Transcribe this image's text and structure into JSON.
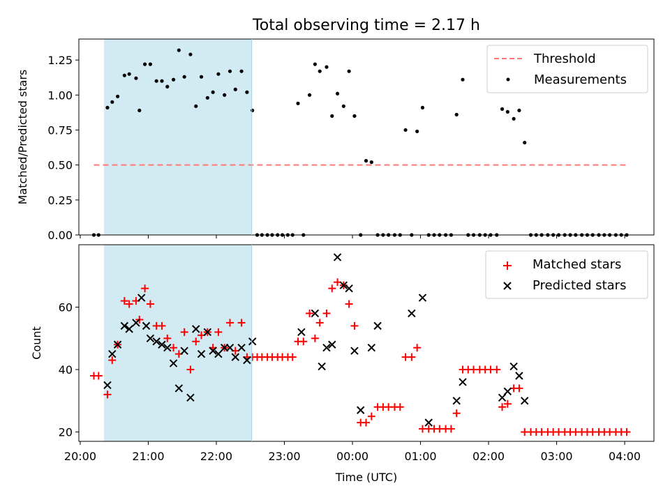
{
  "chart_data": [
    {
      "type": "scatter",
      "title": "Total observing time = 2.17 h",
      "xlabel": "",
      "ylabel": "Matched/Predicted stars",
      "ylim": [
        0,
        1.4
      ],
      "xlim": [
        19.98,
        28.43
      ],
      "y_ticks": [
        "0.00",
        "0.25",
        "0.50",
        "0.75",
        "1.00",
        "1.25"
      ],
      "y_tick_values": [
        0,
        0.25,
        0.5,
        0.75,
        1.0,
        1.25
      ],
      "shaded_span": [
        20.35,
        22.52
      ],
      "shade_color": "#add8e6",
      "legend_position": "upper right",
      "legend": [
        {
          "label": "Threshold",
          "marker": "dashed-line",
          "color": "#ff7777"
        },
        {
          "label": "Measurements",
          "marker": "dot",
          "color": "#000000"
        }
      ],
      "threshold": {
        "name": "Threshold",
        "y": 0.5,
        "x": [
          20.2,
          28.05
        ],
        "color": "#ff7777"
      },
      "series": [
        {
          "name": "Measurements",
          "color": "#000000",
          "x": [
            20.2,
            20.27,
            20.4,
            20.47,
            20.55,
            20.65,
            20.72,
            20.82,
            20.87,
            20.95,
            21.03,
            21.12,
            21.2,
            21.28,
            21.37,
            21.45,
            21.53,
            21.62,
            21.7,
            21.78,
            21.87,
            21.95,
            22.03,
            22.12,
            22.2,
            22.28,
            22.37,
            22.45,
            22.53,
            22.6,
            22.67,
            22.75,
            22.82,
            22.9,
            22.97,
            23.05,
            23.12,
            23.2,
            23.28,
            23.37,
            23.45,
            23.52,
            23.62,
            23.7,
            23.78,
            23.87,
            23.95,
            24.03,
            24.12,
            24.2,
            24.28,
            24.37,
            24.45,
            24.53,
            24.62,
            24.7,
            24.78,
            24.87,
            24.95,
            25.03,
            25.12,
            25.2,
            25.28,
            25.37,
            25.45,
            25.53,
            25.62,
            25.7,
            25.78,
            25.87,
            25.95,
            26.03,
            26.12,
            26.2,
            26.28,
            26.37,
            26.45,
            26.53,
            26.62,
            26.7,
            26.78,
            26.87,
            26.95,
            27.03,
            27.12,
            27.2,
            27.28,
            27.37,
            27.45,
            27.53,
            27.62,
            27.7,
            27.78,
            27.87,
            27.95,
            28.03
          ],
          "y": [
            0,
            0,
            0.91,
            0.95,
            0.99,
            1.14,
            1.15,
            1.12,
            0.89,
            1.22,
            1.22,
            1.1,
            1.1,
            1.06,
            1.11,
            1.32,
            1.13,
            1.29,
            0.92,
            1.13,
            0.98,
            1.02,
            1.15,
            1.0,
            1.17,
            1.04,
            1.17,
            1.02,
            0.89,
            0,
            0,
            0,
            0,
            0,
            0,
            0,
            0,
            0.94,
            0,
            1.0,
            1.22,
            1.17,
            1.2,
            0.85,
            1.01,
            0.92,
            1.17,
            0.85,
            0,
            0.53,
            0.52,
            0,
            0,
            0,
            0,
            0,
            0.75,
            0,
            0.74,
            0.91,
            0,
            0,
            0,
            0,
            0,
            0.86,
            1.11,
            0,
            0,
            0,
            0,
            0,
            0,
            0.9,
            0.88,
            0.83,
            0.89,
            0.66,
            0,
            0,
            0,
            0,
            0,
            0,
            0,
            0,
            0,
            0,
            0,
            0,
            0,
            0,
            0,
            0,
            0,
            0
          ]
        }
      ]
    },
    {
      "type": "scatter",
      "title": "",
      "xlabel": "Time (UTC)",
      "ylabel": "Count",
      "ylim": [
        17,
        80
      ],
      "xlim": [
        19.98,
        28.43
      ],
      "y_ticks": [
        "20",
        "40",
        "60"
      ],
      "y_tick_values": [
        20,
        40,
        60
      ],
      "x_ticks": [
        "20:00",
        "21:00",
        "22:00",
        "23:00",
        "00:00",
        "01:00",
        "02:00",
        "03:00",
        "04:00"
      ],
      "x_tick_values": [
        20,
        21,
        22,
        23,
        24,
        25,
        26,
        27,
        28
      ],
      "shaded_span": [
        20.35,
        22.52
      ],
      "shade_color": "#add8e6",
      "legend_position": "upper right",
      "legend": [
        {
          "label": "Matched stars",
          "marker": "plus",
          "color": "#ff0000"
        },
        {
          "label": "Predicted stars",
          "marker": "x",
          "color": "#000000"
        }
      ],
      "series": [
        {
          "name": "Matched stars",
          "color": "#ff0000",
          "marker": "plus",
          "x": [
            20.2,
            20.27,
            20.4,
            20.47,
            20.55,
            20.65,
            20.72,
            20.82,
            20.87,
            20.95,
            21.03,
            21.12,
            21.2,
            21.28,
            21.37,
            21.45,
            21.53,
            21.62,
            21.7,
            21.78,
            21.87,
            21.95,
            22.03,
            22.12,
            22.2,
            22.28,
            22.37,
            22.45,
            22.53,
            22.6,
            22.67,
            22.75,
            22.82,
            22.9,
            22.97,
            23.05,
            23.12,
            23.2,
            23.28,
            23.37,
            23.45,
            23.52,
            23.62,
            23.7,
            23.78,
            23.87,
            23.95,
            24.03,
            24.12,
            24.2,
            24.28,
            24.37,
            24.45,
            24.53,
            24.62,
            24.7,
            24.78,
            24.87,
            24.95,
            25.03,
            25.12,
            25.2,
            25.28,
            25.37,
            25.45,
            25.53,
            25.62,
            25.7,
            25.78,
            25.87,
            25.95,
            26.03,
            26.12,
            26.2,
            26.28,
            26.37,
            26.45,
            26.53,
            26.62,
            26.7,
            26.78,
            26.87,
            26.95,
            27.03,
            27.12,
            27.2,
            27.28,
            27.37,
            27.45,
            27.53,
            27.62,
            27.7,
            27.78,
            27.87,
            27.95,
            28.03
          ],
          "y": [
            38,
            38,
            32,
            43,
            48,
            62,
            61,
            62,
            56,
            66,
            61,
            54,
            54,
            50,
            47,
            45,
            52,
            40,
            49,
            51,
            52,
            47,
            52,
            47,
            55,
            46,
            55,
            44,
            44,
            44,
            44,
            44,
            44,
            44,
            44,
            44,
            44,
            49,
            49,
            58,
            50,
            55,
            58,
            66,
            68,
            67,
            61,
            54,
            23,
            23,
            25,
            28,
            28,
            28,
            28,
            28,
            44,
            44,
            47,
            21,
            21,
            21,
            21,
            21,
            21,
            26,
            40,
            40,
            40,
            40,
            40,
            40,
            40,
            28,
            29,
            34,
            34,
            20,
            20,
            20,
            20,
            20,
            20,
            20,
            20,
            20,
            20,
            20,
            20,
            20,
            20,
            20,
            20,
            20,
            20,
            20
          ]
        },
        {
          "name": "Predicted stars",
          "color": "#000000",
          "marker": "x",
          "x": [
            20.4,
            20.47,
            20.55,
            20.65,
            20.72,
            20.82,
            20.9,
            20.97,
            21.03,
            21.12,
            21.2,
            21.28,
            21.37,
            21.45,
            21.53,
            21.62,
            21.7,
            21.78,
            21.87,
            21.95,
            22.03,
            22.12,
            22.2,
            22.28,
            22.37,
            22.45,
            22.53,
            23.25,
            23.45,
            23.55,
            23.62,
            23.7,
            23.78,
            23.87,
            23.95,
            24.03,
            24.12,
            24.28,
            24.37,
            24.87,
            25.03,
            25.12,
            25.53,
            25.62,
            26.2,
            26.28,
            26.37,
            26.45,
            26.53
          ],
          "y": [
            35,
            45,
            48,
            54,
            53,
            55,
            63,
            54,
            50,
            49,
            48,
            47,
            42,
            34,
            46,
            31,
            53,
            45,
            52,
            46,
            45,
            47,
            47,
            44,
            47,
            43,
            49,
            52,
            58,
            41,
            47,
            48,
            76,
            67,
            66,
            46,
            27,
            47,
            54,
            58,
            63,
            23,
            30,
            36,
            31,
            33,
            41,
            38,
            30
          ]
        }
      ]
    }
  ]
}
